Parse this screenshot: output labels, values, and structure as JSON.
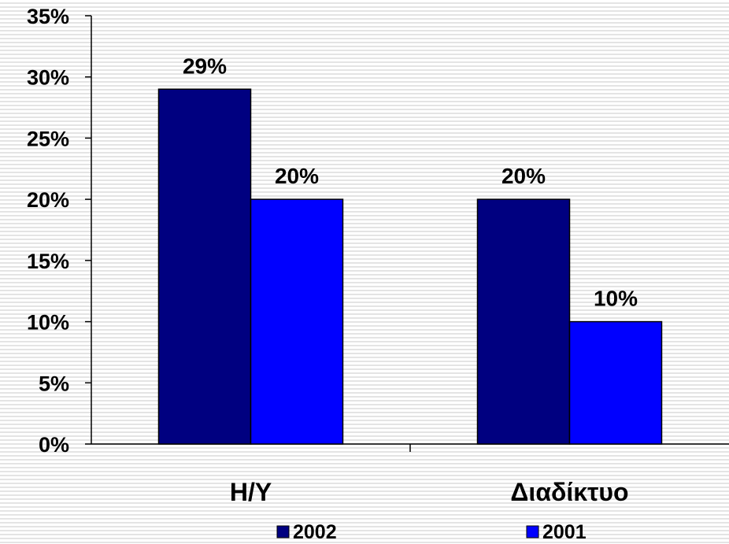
{
  "chart_data": {
    "type": "bar",
    "categories": [
      "Η/Υ",
      "Διαδίκτυο"
    ],
    "series": [
      {
        "name": "2002",
        "values": [
          29,
          20
        ],
        "labels": [
          "29%",
          "20%"
        ],
        "color": "#000080"
      },
      {
        "name": "2001",
        "values": [
          20,
          10
        ],
        "labels": [
          "20%",
          "10%"
        ],
        "color": "#0000ff"
      }
    ],
    "yticks": [
      "0%",
      "5%",
      "10%",
      "15%",
      "20%",
      "25%",
      "30%",
      "35%"
    ],
    "ylim": [
      0,
      35
    ],
    "ystep": 5,
    "title": "",
    "xlabel": "",
    "ylabel": "",
    "legend_position": "bottom",
    "grid": false
  }
}
